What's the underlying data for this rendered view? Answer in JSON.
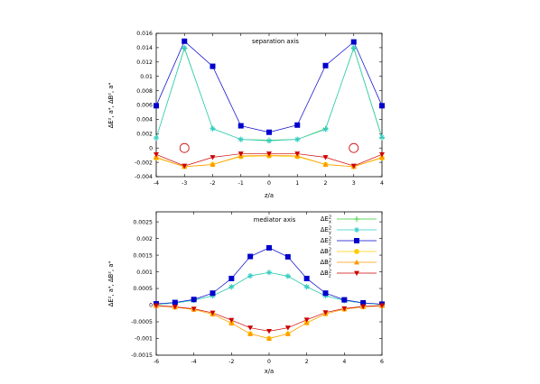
{
  "chart_data": [
    {
      "type": "line",
      "title": "separation axis",
      "xlabel": "z/a",
      "ylabel": "ΔE², a⁴, ΔB², a⁴",
      "xlim": [
        -4,
        4
      ],
      "ylim": [
        -0.004,
        0.016
      ],
      "xticks": [
        "-4",
        "-3",
        "-2",
        "-1",
        "0",
        "1",
        "2",
        "3",
        "4"
      ],
      "yticks": [
        "-0.004",
        "-0.002",
        "0",
        "0.002",
        "0.004",
        "0.006",
        "0.008",
        "0.01",
        "0.012",
        "0.014",
        "0.016"
      ],
      "grid": false,
      "series": [
        {
          "key": "Ex",
          "color": "#33cc33",
          "marker": "plus",
          "x": [
            -4,
            -3,
            -2,
            -1,
            0,
            1,
            2,
            3,
            4
          ],
          "values": [
            0.0014,
            0.0139,
            0.0027,
            0.0012,
            0.0011,
            0.0012,
            0.0027,
            0.0139,
            0.0014
          ]
        },
        {
          "key": "Ey",
          "color": "#33cccc",
          "marker": "star",
          "x": [
            -4,
            -3,
            -2,
            -1,
            0,
            1,
            2,
            3,
            4
          ],
          "values": [
            0.0014,
            0.014,
            0.0027,
            0.0012,
            0.001,
            0.0012,
            0.0026,
            0.014,
            0.0015
          ]
        },
        {
          "key": "Ez",
          "color": "#0000cc",
          "marker": "square",
          "x": [
            -4,
            -3,
            -2,
            -1,
            0,
            1,
            2,
            3,
            4
          ],
          "values": [
            0.0059,
            0.0149,
            0.0114,
            0.0031,
            0.0022,
            0.0032,
            0.0115,
            0.0148,
            0.0059
          ]
        },
        {
          "key": "Bx",
          "color": "#ffcc00",
          "marker": "circle",
          "x": [
            -4,
            -3,
            -2,
            -1,
            0,
            1,
            2,
            3,
            4
          ],
          "values": [
            -0.0014,
            -0.0026,
            -0.0023,
            -0.0012,
            -0.0011,
            -0.0012,
            -0.0023,
            -0.0026,
            -0.0014
          ]
        },
        {
          "key": "By",
          "color": "#ff9900",
          "marker": "triangle-up",
          "x": [
            -4,
            -3,
            -2,
            -1,
            0,
            1,
            2,
            3,
            4
          ],
          "values": [
            -0.0013,
            -0.0026,
            -0.0023,
            -0.0011,
            -0.001,
            -0.0011,
            -0.0023,
            -0.0026,
            -0.0013
          ]
        },
        {
          "key": "Bz",
          "color": "#cc0000",
          "marker": "triangle-down",
          "x": [
            -4,
            -3,
            -2,
            -1,
            0,
            1,
            2,
            3,
            4
          ],
          "values": [
            -0.0009,
            -0.0025,
            -0.0013,
            -0.0008,
            -0.0008,
            -0.0008,
            -0.0013,
            -0.0025,
            -0.0009
          ]
        }
      ],
      "annotations": [
        {
          "shape": "open-circle",
          "color": "#cc0000",
          "x": -3,
          "y": 0
        },
        {
          "shape": "open-circle",
          "color": "#cc0000",
          "x": 3,
          "y": 0
        }
      ]
    },
    {
      "type": "line",
      "title": "mediator axis",
      "xlabel": "x/a",
      "ylabel": "ΔE², a⁴, ΔB², a⁴",
      "xlim": [
        -6,
        6
      ],
      "ylim": [
        -0.0015,
        0.0028
      ],
      "xticks": [
        "-6",
        "-4",
        "-2",
        "0",
        "2",
        "4",
        "6"
      ],
      "yticks": [
        "-0.0015",
        "-0.001",
        "-0.0005",
        "0",
        "0.0005",
        "0.001",
        "0.0015",
        "0.002",
        "0.0025"
      ],
      "grid": false,
      "legend_position": "top-right",
      "series": [
        {
          "key": "Ex",
          "name": "ΔE²x",
          "color": "#33cc33",
          "marker": "plus",
          "x": [
            -6,
            -5,
            -4,
            -3,
            -2,
            -1,
            0,
            1,
            2,
            3,
            4,
            5,
            6
          ],
          "values": [
            2e-05,
            6e-05,
            0.00015,
            0.00028,
            0.00055,
            0.00088,
            0.00098,
            0.00087,
            0.00055,
            0.00028,
            0.00014,
            6e-05,
            2e-05
          ]
        },
        {
          "key": "Ey",
          "name": "ΔE²y",
          "color": "#33cccc",
          "marker": "star",
          "x": [
            -6,
            -5,
            -4,
            -3,
            -2,
            -1,
            0,
            1,
            2,
            3,
            4,
            5,
            6
          ],
          "values": [
            2e-05,
            6e-05,
            0.00015,
            0.00028,
            0.00055,
            0.00088,
            0.00098,
            0.00087,
            0.00055,
            0.00028,
            0.00014,
            6e-05,
            2e-05
          ]
        },
        {
          "key": "Ez",
          "name": "ΔE²z",
          "color": "#0000cc",
          "marker": "square",
          "x": [
            -6,
            -5,
            -4,
            -3,
            -2,
            -1,
            0,
            1,
            2,
            3,
            4,
            5,
            6
          ],
          "values": [
            4e-05,
            8e-05,
            0.00017,
            0.00036,
            0.0008,
            0.00146,
            0.00172,
            0.00145,
            0.0008,
            0.00036,
            0.00016,
            7e-05,
            3e-05
          ]
        },
        {
          "key": "Bx",
          "name": "ΔB²x",
          "color": "#ffcc00",
          "marker": "circle",
          "x": [
            -6,
            -5,
            -4,
            -3,
            -2,
            -1,
            0,
            1,
            2,
            3,
            4,
            5,
            6
          ],
          "values": [
            -2e-05,
            -6e-05,
            -0.00013,
            -0.00027,
            -0.00054,
            -0.00086,
            -0.001,
            -0.00086,
            -0.00053,
            -0.00026,
            -0.00012,
            -5e-05,
            -2e-05
          ]
        },
        {
          "key": "By",
          "name": "ΔB²y",
          "color": "#ff9900",
          "marker": "triangle-up",
          "x": [
            -6,
            -5,
            -4,
            -3,
            -2,
            -1,
            0,
            1,
            2,
            3,
            4,
            5,
            6
          ],
          "values": [
            -2e-05,
            -6e-05,
            -0.00013,
            -0.00027,
            -0.00054,
            -0.00086,
            -0.001,
            -0.00086,
            -0.00053,
            -0.00026,
            -0.00012,
            -5e-05,
            -2e-05
          ]
        },
        {
          "key": "Bz",
          "name": "ΔB²z",
          "color": "#cc0000",
          "marker": "triangle-down",
          "x": [
            -6,
            -5,
            -4,
            -3,
            -2,
            -1,
            0,
            1,
            2,
            3,
            4,
            5,
            6
          ],
          "values": [
            -1e-05,
            -5e-05,
            -0.00011,
            -0.00023,
            -0.00045,
            -0.00068,
            -0.00078,
            -0.00068,
            -0.00044,
            -0.00022,
            -0.0001,
            -4e-05,
            -1e-05
          ]
        }
      ]
    }
  ]
}
